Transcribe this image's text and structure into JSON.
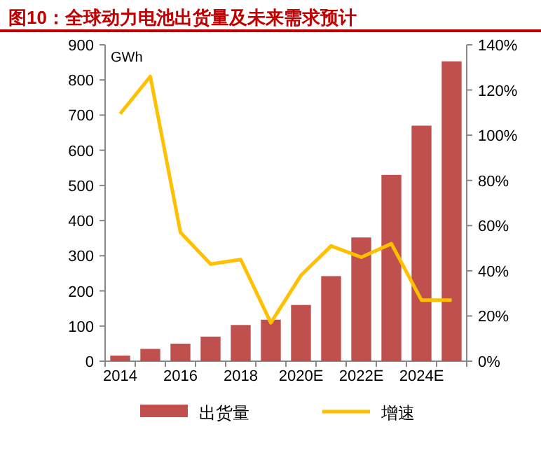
{
  "chart_data": {
    "type": "bar",
    "title": "图10：全球动力电池出货量及未来需求预计",
    "categories": [
      "2014",
      null,
      "2016",
      null,
      "2018",
      null,
      "2020E",
      null,
      "2022E",
      null,
      "2024E",
      null
    ],
    "series": [
      {
        "name": "出货量",
        "color": "#c0504d",
        "values": [
          16,
          35,
          50,
          70,
          103,
          118,
          160,
          242,
          352,
          530,
          670,
          853
        ]
      },
      {
        "name": "增速",
        "type": "line",
        "axis": "y2",
        "color": "#ffc000",
        "values": [
          109.5,
          126,
          57,
          43,
          45,
          17,
          38,
          51,
          46,
          52,
          27,
          27
        ]
      }
    ],
    "ylim": [
      0,
      900
    ],
    "yticks": [
      0,
      100,
      200,
      300,
      400,
      500,
      600,
      700,
      800,
      900
    ],
    "y2lim": [
      0,
      140
    ],
    "y2ticks": [
      {
        "value": 0,
        "label": "0%"
      },
      {
        "value": 20,
        "label": "20%"
      },
      {
        "value": 40,
        "label": "40%"
      },
      {
        "value": 60,
        "label": "60%"
      },
      {
        "value": 80,
        "label": "80%"
      },
      {
        "value": 100,
        "label": "100%"
      },
      {
        "value": 120,
        "label": "120%"
      },
      {
        "value": 140,
        "label": "140%"
      }
    ],
    "annotations": [
      "GWh"
    ],
    "legend": "bottom",
    "grid": false,
    "marker": "none"
  }
}
